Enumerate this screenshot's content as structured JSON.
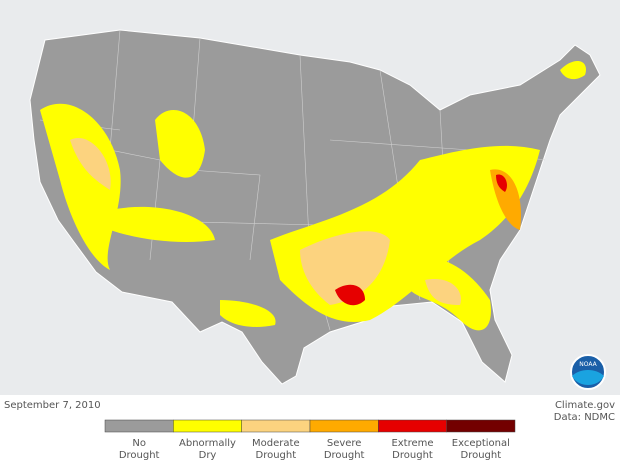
{
  "date": "September 7, 2010",
  "credit": "Climate.gov",
  "source": "Data: NDMC",
  "logo_text": "NOAA",
  "legend": [
    {
      "lines": [
        "No",
        "Drought"
      ],
      "color": "#9b9b9b"
    },
    {
      "lines": [
        "Abnormally",
        "Dry"
      ],
      "color": "#ffff00"
    },
    {
      "lines": [
        "Moderate",
        "Drought"
      ],
      "color": "#fcd37f"
    },
    {
      "lines": [
        "Severe",
        "Drought"
      ],
      "color": "#ffaa00"
    },
    {
      "lines": [
        "Extreme",
        "Drought"
      ],
      "color": "#e60000"
    },
    {
      "lines": [
        "Exceptional",
        "Drought"
      ],
      "color": "#730000"
    }
  ]
}
